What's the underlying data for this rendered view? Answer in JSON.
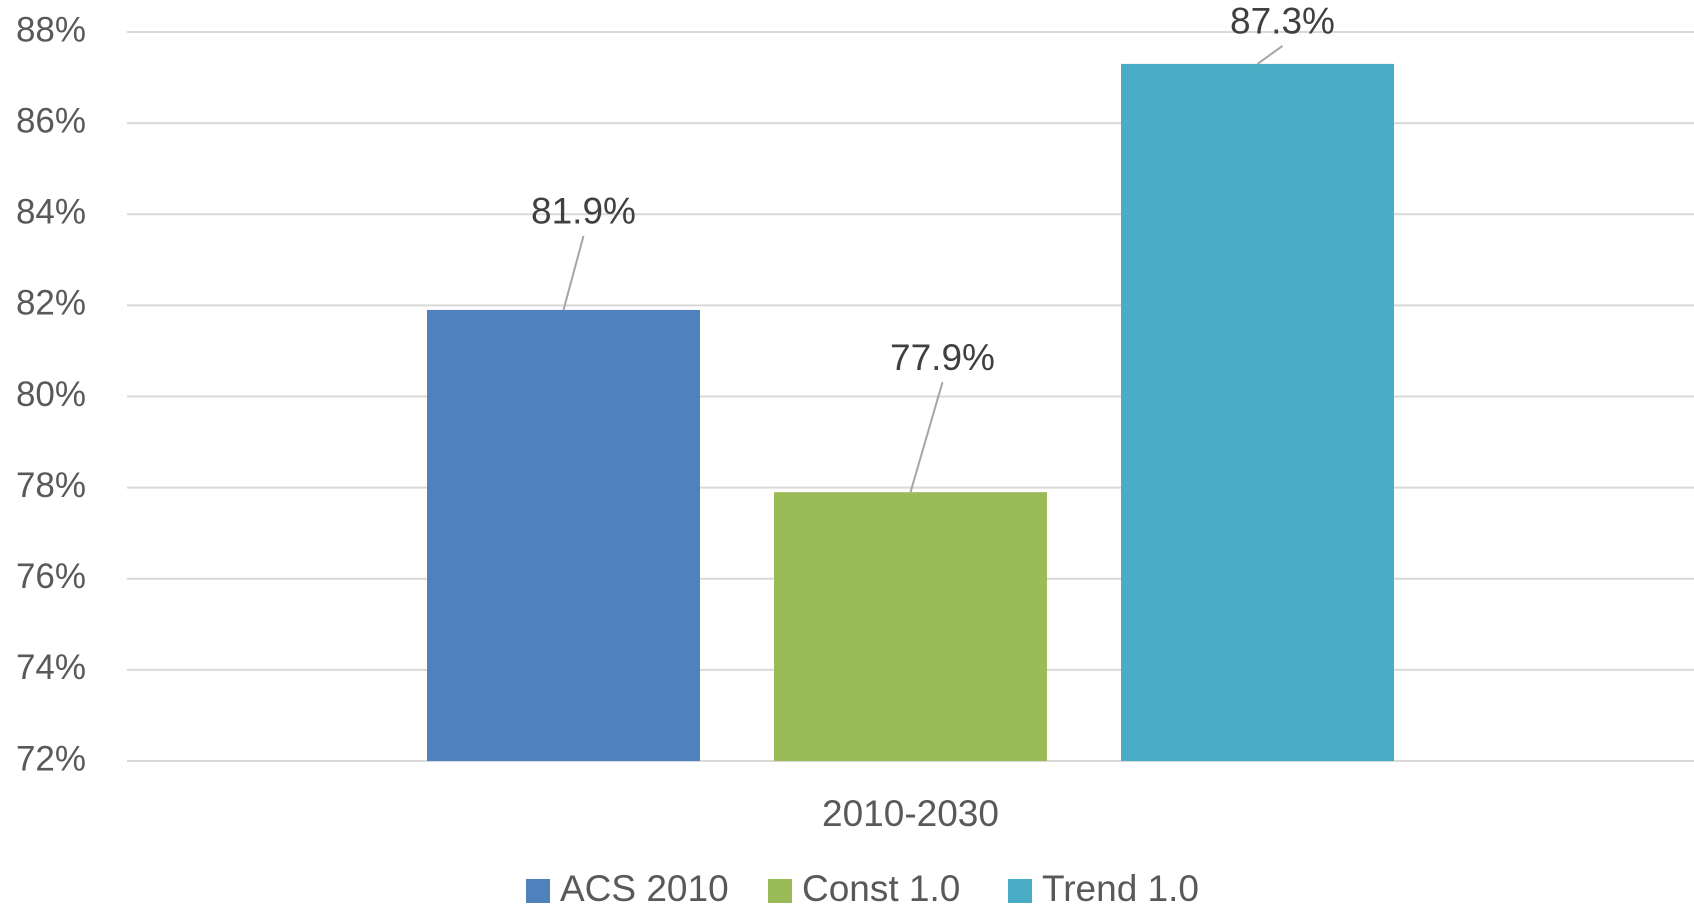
{
  "chart_data": {
    "type": "bar",
    "categories": [
      "2010-2030"
    ],
    "series": [
      {
        "name": "ACS 2010",
        "color": "#4f81bd",
        "values": [
          81.9
        ],
        "value_labels": [
          "81.9%"
        ]
      },
      {
        "name": "Const 1.0",
        "color": "#9bbb59",
        "values": [
          77.9
        ],
        "value_labels": [
          "77.9%"
        ]
      },
      {
        "name": "Trend 1.0",
        "color": "#4bacc6",
        "values": [
          87.3
        ],
        "value_labels": [
          "87.3%"
        ]
      }
    ],
    "ylim": [
      72,
      88
    ],
    "yticks": [
      {
        "value": 72,
        "label": "72%"
      },
      {
        "value": 74,
        "label": "74%"
      },
      {
        "value": 76,
        "label": "76%"
      },
      {
        "value": 78,
        "label": "78%"
      },
      {
        "value": 80,
        "label": "80%"
      },
      {
        "value": 82,
        "label": "82%"
      },
      {
        "value": 84,
        "label": "84%"
      },
      {
        "value": 86,
        "label": "86%"
      },
      {
        "value": 88,
        "label": "88%"
      }
    ],
    "grid": true,
    "legend": "bottom"
  }
}
